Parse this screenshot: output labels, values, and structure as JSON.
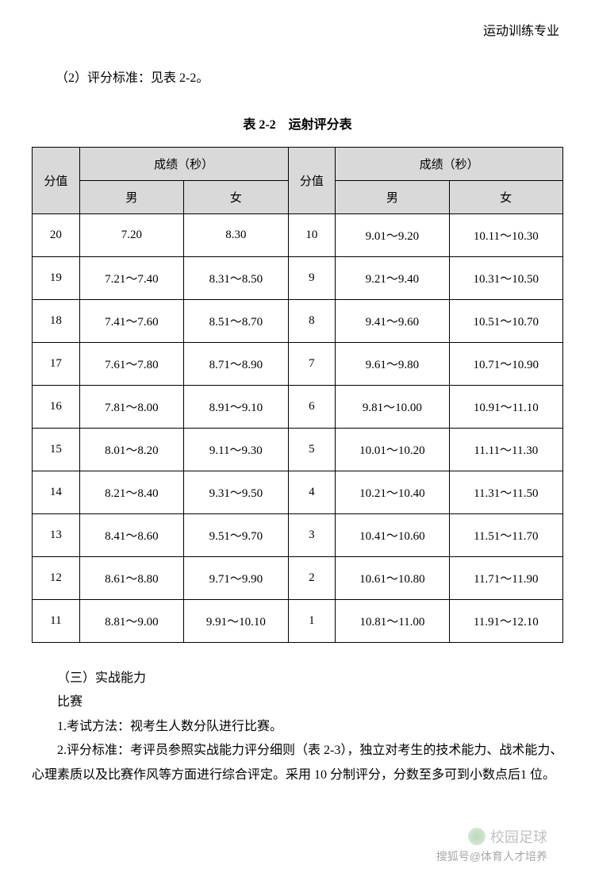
{
  "header_right": "运动训练专业",
  "intro": "（2）评分标准：见表 2-2。",
  "table": {
    "title": "表 2-2　运射评分表",
    "group_headers": {
      "score": "分值",
      "result": "成绩（秒）",
      "male": "男",
      "female": "女"
    },
    "rows": [
      {
        "s1": "20",
        "m1": "7.20",
        "f1": "8.30",
        "s2": "10",
        "m2": "9.01～9.20",
        "f2": "10.11～10.30"
      },
      {
        "s1": "19",
        "m1": "7.21～7.40",
        "f1": "8.31～8.50",
        "s2": "9",
        "m2": "9.21～9.40",
        "f2": "10.31～10.50"
      },
      {
        "s1": "18",
        "m1": "7.41～7.60",
        "f1": "8.51～8.70",
        "s2": "8",
        "m2": "9.41～9.60",
        "f2": "10.51～10.70"
      },
      {
        "s1": "17",
        "m1": "7.61～7.80",
        "f1": "8.71～8.90",
        "s2": "7",
        "m2": "9.61～9.80",
        "f2": "10.71～10.90"
      },
      {
        "s1": "16",
        "m1": "7.81～8.00",
        "f1": "8.91～9.10",
        "s2": "6",
        "m2": "9.81～10.00",
        "f2": "10.91～11.10"
      },
      {
        "s1": "15",
        "m1": "8.01～8.20",
        "f1": "9.11～9.30",
        "s2": "5",
        "m2": "10.01～10.20",
        "f2": "11.11～11.30"
      },
      {
        "s1": "14",
        "m1": "8.21～8.40",
        "f1": "9.31～9.50",
        "s2": "4",
        "m2": "10.21～10.40",
        "f2": "11.31～11.50"
      },
      {
        "s1": "13",
        "m1": "8.41～8.60",
        "f1": "9.51～9.70",
        "s2": "3",
        "m2": "10.41～10.60",
        "f2": "11.51～11.70"
      },
      {
        "s1": "12",
        "m1": "8.61～8.80",
        "f1": "9.71～9.90",
        "s2": "2",
        "m2": "10.61～10.80",
        "f2": "11.71～11.90"
      },
      {
        "s1": "11",
        "m1": "8.81～9.00",
        "f1": "9.91～10.10",
        "s2": "1",
        "m2": "10.81～11.00",
        "f2": "11.91～12.10"
      }
    ]
  },
  "body": {
    "section_title": "（三）实战能力",
    "subtitle": "比赛",
    "line1": "1.考试方法：视考生人数分队进行比赛。",
    "line2": "2.评分标准：考评员参照实战能力评分细则（表 2-3），独立对考生的技术能力、战术能力、心理素质以及比赛作风等方面进行综合评定。采用 10 分制评分，分数至多可到小数点后1 位。"
  },
  "watermark": "校园足球",
  "footer_credit": "搜狐号@体育人才培养",
  "colors": {
    "header_bg": "#d9d9d9",
    "border": "#000000",
    "text": "#000000",
    "background": "#ffffff"
  }
}
